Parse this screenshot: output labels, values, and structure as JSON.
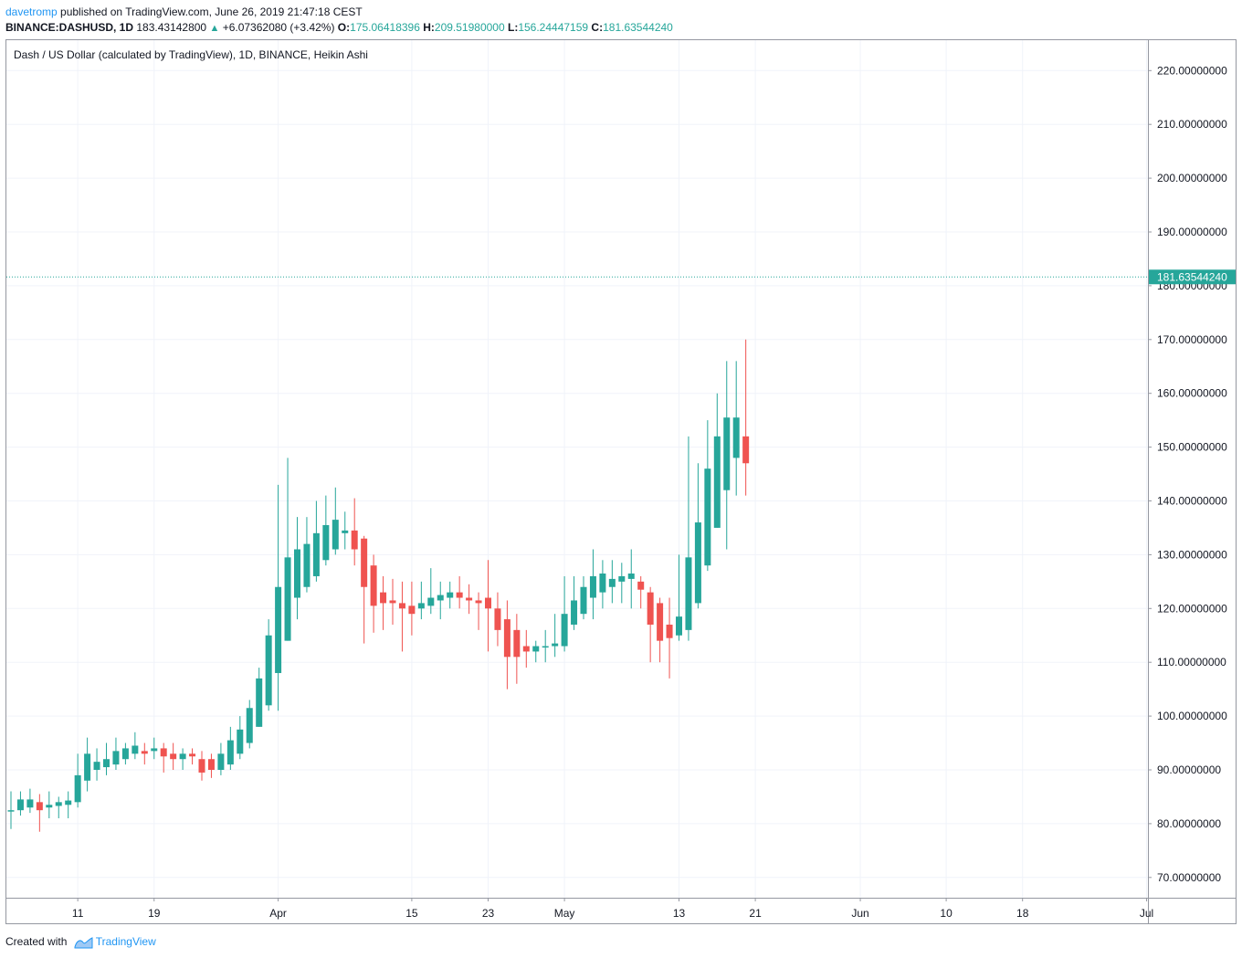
{
  "header": {
    "author": "davetromp",
    "published_text": " published on TradingView.com, June 26, 2019 21:47:18 CEST",
    "symbol": "BINANCE:DASHUSD, 1D",
    "last": "183.43142800",
    "change": "+6.07362080 (+3.42%)",
    "open_label": "O:",
    "open": "175.06418396",
    "high_label": "H:",
    "high": "209.51980000",
    "low_label": "L:",
    "low": "156.24447159",
    "close_label": "C:",
    "close": "181.63544240"
  },
  "legend": "Dash / US Dollar (calculated by TradingView), 1D, BINANCE, Heikin Ashi",
  "footer": {
    "created_with": "Created with",
    "brand": "TradingView"
  },
  "colors": {
    "up": "#26a69a",
    "down": "#ef5350",
    "grid": "#f0f3fa",
    "axis": "#9598a1",
    "price_line": "#26a69a"
  },
  "chart_data": {
    "type": "candlestick",
    "style": "Heikin Ashi",
    "interval": "1D",
    "grid": true,
    "ylim": [
      65,
      225
    ],
    "y_ticks": [
      70,
      80,
      90,
      100,
      110,
      120,
      130,
      140,
      150,
      160,
      170,
      180,
      190,
      200,
      210,
      220
    ],
    "y_tick_labels": [
      "70.00000000",
      "80.00000000",
      "90.00000000",
      "100.00000000",
      "110.00000000",
      "120.00000000",
      "130.00000000",
      "140.00000000",
      "150.00000000",
      "160.00000000",
      "170.00000000",
      "180.00000000",
      "190.00000000",
      "200.00000000",
      "210.00000000",
      "220.00000000"
    ],
    "x_start_date": "2019-03-04",
    "x_ticks": [
      {
        "label": "11",
        "day": 7
      },
      {
        "label": "19",
        "day": 15
      },
      {
        "label": "Apr",
        "day": 28
      },
      {
        "label": "15",
        "day": 42
      },
      {
        "label": "23",
        "day": 50
      },
      {
        "label": "May",
        "day": 58
      },
      {
        "label": "13",
        "day": 70
      },
      {
        "label": "21",
        "day": 78
      },
      {
        "label": "Jun",
        "day": 89
      },
      {
        "label": "10",
        "day": 98
      },
      {
        "label": "18",
        "day": 106
      },
      {
        "label": "Jul",
        "day": 119
      }
    ],
    "last_price": 181.6354424,
    "last_price_label": "181.63544240",
    "candles": [
      {
        "o": 82.3,
        "h": 86,
        "l": 79,
        "c": 82.5
      },
      {
        "o": 82.5,
        "h": 86,
        "l": 81.5,
        "c": 84.5
      },
      {
        "o": 83,
        "h": 86.5,
        "l": 82,
        "c": 84.5
      },
      {
        "o": 84,
        "h": 85.5,
        "l": 78.5,
        "c": 82.5
      },
      {
        "o": 83,
        "h": 86,
        "l": 81,
        "c": 83.5
      },
      {
        "o": 83.3,
        "h": 85,
        "l": 81,
        "c": 84
      },
      {
        "o": 83.5,
        "h": 86,
        "l": 81,
        "c": 84.3
      },
      {
        "o": 84,
        "h": 93,
        "l": 83,
        "c": 89
      },
      {
        "o": 88,
        "h": 96,
        "l": 86,
        "c": 93
      },
      {
        "o": 90,
        "h": 94,
        "l": 88,
        "c": 91.5
      },
      {
        "o": 90.5,
        "h": 95,
        "l": 89,
        "c": 92
      },
      {
        "o": 91,
        "h": 96,
        "l": 90,
        "c": 93.5
      },
      {
        "o": 92,
        "h": 95,
        "l": 91,
        "c": 94
      },
      {
        "o": 93,
        "h": 97,
        "l": 92,
        "c": 94.5
      },
      {
        "o": 93.5,
        "h": 95,
        "l": 91,
        "c": 93
      },
      {
        "o": 93.5,
        "h": 96,
        "l": 92,
        "c": 94
      },
      {
        "o": 94,
        "h": 95,
        "l": 89.5,
        "c": 92.5
      },
      {
        "o": 93,
        "h": 95,
        "l": 90,
        "c": 92
      },
      {
        "o": 92,
        "h": 94,
        "l": 90,
        "c": 93
      },
      {
        "o": 93,
        "h": 94,
        "l": 91,
        "c": 92.5
      },
      {
        "o": 92,
        "h": 93.5,
        "l": 88,
        "c": 89.5
      },
      {
        "o": 92,
        "h": 93,
        "l": 88.5,
        "c": 90
      },
      {
        "o": 90,
        "h": 95,
        "l": 89,
        "c": 93
      },
      {
        "o": 91,
        "h": 98,
        "l": 90,
        "c": 95.5
      },
      {
        "o": 93,
        "h": 100,
        "l": 92,
        "c": 97.5
      },
      {
        "o": 95,
        "h": 103,
        "l": 94,
        "c": 101.5
      },
      {
        "o": 98,
        "h": 109,
        "l": 98,
        "c": 107
      },
      {
        "o": 102,
        "h": 118,
        "l": 101,
        "c": 115
      },
      {
        "o": 108,
        "h": 143,
        "l": 101,
        "c": 124
      },
      {
        "o": 114,
        "h": 148,
        "l": 114,
        "c": 129.5
      },
      {
        "o": 122,
        "h": 137,
        "l": 118,
        "c": 131
      },
      {
        "o": 124,
        "h": 137,
        "l": 123,
        "c": 132
      },
      {
        "o": 126,
        "h": 140,
        "l": 125,
        "c": 134
      },
      {
        "o": 129,
        "h": 141,
        "l": 128,
        "c": 135.5
      },
      {
        "o": 131,
        "h": 142.5,
        "l": 130,
        "c": 136.5
      },
      {
        "o": 134,
        "h": 138,
        "l": 131,
        "c": 134.5
      },
      {
        "o": 134.5,
        "h": 140.5,
        "l": 128,
        "c": 131
      },
      {
        "o": 133,
        "h": 133.5,
        "l": 113.5,
        "c": 124
      },
      {
        "o": 128,
        "h": 130,
        "l": 115.5,
        "c": 120.5
      },
      {
        "o": 123,
        "h": 126,
        "l": 116,
        "c": 121
      },
      {
        "o": 121.5,
        "h": 125.5,
        "l": 117,
        "c": 121
      },
      {
        "o": 121,
        "h": 125,
        "l": 112,
        "c": 120
      },
      {
        "o": 120.5,
        "h": 125,
        "l": 115,
        "c": 119
      },
      {
        "o": 120,
        "h": 125,
        "l": 118,
        "c": 121
      },
      {
        "o": 120.5,
        "h": 127.5,
        "l": 119,
        "c": 122
      },
      {
        "o": 121.5,
        "h": 125,
        "l": 118,
        "c": 122.5
      },
      {
        "o": 122,
        "h": 125,
        "l": 120,
        "c": 123
      },
      {
        "o": 123,
        "h": 126,
        "l": 120,
        "c": 122
      },
      {
        "o": 122,
        "h": 124.5,
        "l": 119,
        "c": 121.5
      },
      {
        "o": 121.5,
        "h": 123,
        "l": 116,
        "c": 121
      },
      {
        "o": 122,
        "h": 129,
        "l": 112,
        "c": 120
      },
      {
        "o": 120,
        "h": 123,
        "l": 113,
        "c": 116
      },
      {
        "o": 118,
        "h": 121.5,
        "l": 105,
        "c": 111
      },
      {
        "o": 116,
        "h": 119,
        "l": 106,
        "c": 111
      },
      {
        "o": 113,
        "h": 116,
        "l": 109,
        "c": 112
      },
      {
        "o": 112,
        "h": 114,
        "l": 110,
        "c": 113
      },
      {
        "o": 113,
        "h": 116,
        "l": 110,
        "c": 113
      },
      {
        "o": 113,
        "h": 119,
        "l": 111,
        "c": 113.5
      },
      {
        "o": 113,
        "h": 126,
        "l": 112,
        "c": 119
      },
      {
        "o": 117,
        "h": 126,
        "l": 116,
        "c": 121.5
      },
      {
        "o": 119,
        "h": 126,
        "l": 118,
        "c": 124
      },
      {
        "o": 122,
        "h": 131,
        "l": 118,
        "c": 126
      },
      {
        "o": 123,
        "h": 129,
        "l": 120,
        "c": 126.5
      },
      {
        "o": 124,
        "h": 129,
        "l": 121,
        "c": 125.5
      },
      {
        "o": 125,
        "h": 128.5,
        "l": 121,
        "c": 126
      },
      {
        "o": 125.5,
        "h": 131,
        "l": 120,
        "c": 126.5
      },
      {
        "o": 125,
        "h": 126,
        "l": 120,
        "c": 123.5
      },
      {
        "o": 123,
        "h": 124,
        "l": 110,
        "c": 117
      },
      {
        "o": 121,
        "h": 122,
        "l": 110,
        "c": 114
      },
      {
        "o": 117,
        "h": 122,
        "l": 107,
        "c": 114.5
      },
      {
        "o": 115,
        "h": 130,
        "l": 114,
        "c": 118.5
      },
      {
        "o": 116,
        "h": 152,
        "l": 114,
        "c": 129.5
      },
      {
        "o": 121,
        "h": 147,
        "l": 120,
        "c": 136
      },
      {
        "o": 128,
        "h": 155,
        "l": 127,
        "c": 146
      },
      {
        "o": 135,
        "h": 160,
        "l": 135,
        "c": 152
      },
      {
        "o": 142,
        "h": 166,
        "l": 131,
        "c": 155.5
      },
      {
        "o": 148,
        "h": 166,
        "l": 141,
        "c": 155.5
      },
      {
        "o": 152,
        "h": 170,
        "l": 141,
        "c": 147
      }
    ]
  }
}
